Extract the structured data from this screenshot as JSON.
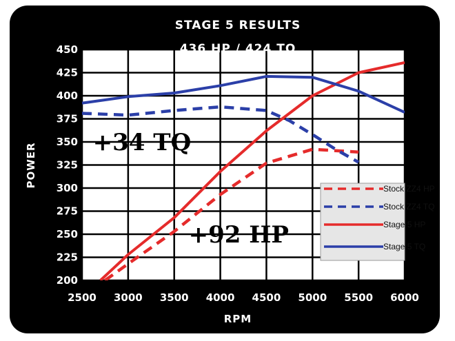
{
  "chart_data": {
    "type": "line",
    "title": "STAGE 5 RESULTS",
    "subtitle": "436 HP / 424 TQ",
    "xlabel": "RPM",
    "ylabel": "POWER",
    "xlim": [
      2500,
      6000
    ],
    "ylim": [
      200,
      450
    ],
    "x_ticks": [
      "2500",
      "3000",
      "3500",
      "4000",
      "4500",
      "5000",
      "5500",
      "6000"
    ],
    "y_ticks": [
      "450",
      "425",
      "400",
      "375",
      "350",
      "325",
      "300",
      "275",
      "250",
      "225",
      "200"
    ],
    "grid": true,
    "legend_position": "right",
    "series": [
      {
        "name": "Stock ZZ4 HP",
        "color": "#e52b2b",
        "style": "dashed",
        "x": [
          2750,
          3000,
          3500,
          4000,
          4500,
          5000,
          5500
        ],
        "y": [
          200,
          218,
          253,
          293,
          327,
          342,
          339
        ]
      },
      {
        "name": "Stock ZZ4 TQ",
        "color": "#2b3fa8",
        "style": "dashed",
        "x": [
          2500,
          3000,
          3500,
          4000,
          4500,
          4750,
          5000,
          5250,
          5500
        ],
        "y": [
          381,
          379,
          384,
          388,
          384,
          373,
          358,
          342,
          328
        ]
      },
      {
        "name": "Stage 5 HP",
        "color": "#e52b2b",
        "style": "solid",
        "x": [
          2700,
          3000,
          3500,
          4000,
          4500,
          5000,
          5500,
          6000
        ],
        "y": [
          200,
          228,
          268,
          318,
          362,
          400,
          425,
          436
        ]
      },
      {
        "name": "Stage 5 TQ",
        "color": "#2b3fa8",
        "style": "solid",
        "x": [
          2500,
          3000,
          3500,
          4000,
          4500,
          5000,
          5500,
          6000
        ],
        "y": [
          392,
          399,
          403,
          411,
          421,
          420,
          405,
          382
        ]
      }
    ],
    "legend": [
      {
        "label": "Stock ZZ4 HP",
        "color": "#e52b2b",
        "style": "dashed"
      },
      {
        "label": "Stock ZZ4 TQ",
        "color": "#2b3fa8",
        "style": "dashed"
      },
      {
        "label": "Stage 5 HP",
        "color": "#e52b2b",
        "style": "solid"
      },
      {
        "label": "Stage 5 TQ",
        "color": "#2b3fa8",
        "style": "solid"
      }
    ],
    "annotations": [
      {
        "text": "+34 TQ",
        "x": 3150,
        "y": 350
      },
      {
        "text": "+92 HP",
        "x": 4200,
        "y": 250
      }
    ]
  },
  "colors": {
    "background": "#000000",
    "plot_area": "#ffffff",
    "legend_bg": "#e6e6e6",
    "border_accent": "#f3e600"
  }
}
